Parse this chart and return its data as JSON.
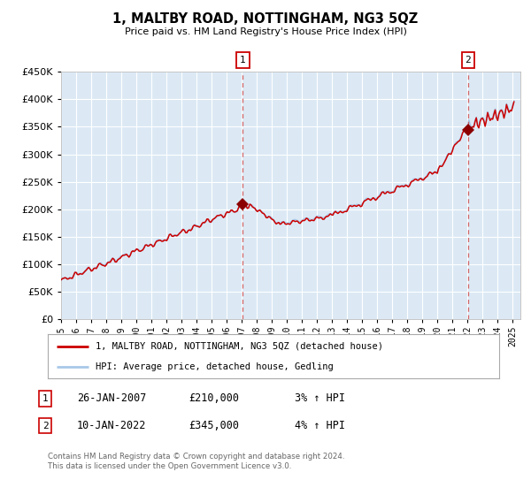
{
  "title": "1, MALTBY ROAD, NOTTINGHAM, NG3 5QZ",
  "subtitle": "Price paid vs. HM Land Registry's House Price Index (HPI)",
  "bg_color": "#dce9f5",
  "red_line_label": "1, MALTBY ROAD, NOTTINGHAM, NG3 5QZ (detached house)",
  "blue_line_label": "HPI: Average price, detached house, Gedling",
  "red_color": "#cc0000",
  "blue_color": "#a8c8e8",
  "ylim": [
    0,
    450000
  ],
  "yticks": [
    0,
    50000,
    100000,
    150000,
    200000,
    250000,
    300000,
    350000,
    400000,
    450000
  ],
  "year_start": 1995,
  "year_end": 2025,
  "annotation1": {
    "label": "1",
    "date_year": 2007.07,
    "value": 210000,
    "text_date": "26-JAN-2007",
    "text_price": "£210,000",
    "text_hpi": "3% ↑ HPI"
  },
  "annotation2": {
    "label": "2",
    "date_year": 2022.03,
    "value": 345000,
    "text_date": "10-JAN-2022",
    "text_price": "£345,000",
    "text_hpi": "4% ↑ HPI"
  },
  "footer": "Contains HM Land Registry data © Crown copyright and database right 2024.\nThis data is licensed under the Open Government Licence v3.0."
}
